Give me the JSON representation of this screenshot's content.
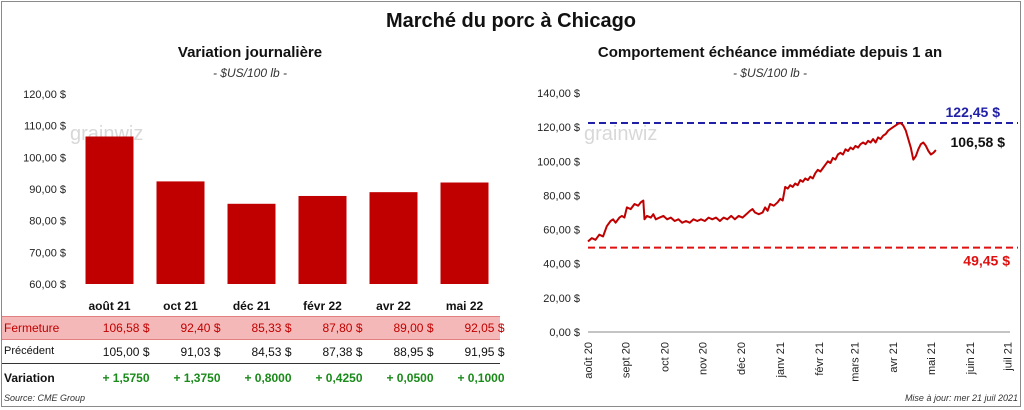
{
  "title": "Marché du porc à Chicago",
  "left_chart": {
    "title": "Variation journalière",
    "subtitle": "- $US/100 lb -"
  },
  "right_chart": {
    "title": "Comportement échéance immédiate depuis 1 an",
    "subtitle": "- $US/100 lb -",
    "annot_high": "122,45 $",
    "annot_last": "106,58 $",
    "annot_low": "49,45 $"
  },
  "watermark": "grainwiz",
  "table": {
    "close_label": "Fermeture",
    "close": [
      "106,58  $",
      "92,40  $",
      "85,33  $",
      "87,80  $",
      "89,00  $",
      "92,05  $"
    ],
    "prev_label": "Précédent",
    "prev": [
      "105,00  $",
      "91,03  $",
      "84,53  $",
      "87,38  $",
      "88,95  $",
      "91,95  $"
    ],
    "var_label": "Variation",
    "var": [
      "+ 1,5750",
      "+ 1,3750",
      "+ 0,8000",
      "+ 0,4250",
      "+ 0,0500",
      "+ 0,1000"
    ]
  },
  "source": "Source: CME Group",
  "update": "Mise à jour: mer 21 juil 2021",
  "colors": {
    "bar": "#c00000",
    "line": "#c00000",
    "high": "#1f1fa8",
    "low": "#e01010"
  },
  "chart_data": [
    {
      "type": "bar",
      "categories": [
        "août 21",
        "oct 21",
        "déc 21",
        "févr 22",
        "avr 22",
        "mai 22"
      ],
      "values": [
        106.58,
        92.4,
        85.33,
        87.8,
        89.0,
        92.05
      ],
      "ylim": [
        60,
        120
      ],
      "yticks": [
        "60,00 $",
        "70,00 $",
        "80,00 $",
        "90,00 $",
        "100,00 $",
        "110,00 $",
        "120,00 $"
      ]
    },
    {
      "type": "line",
      "x": [
        "août 20",
        "sept 20",
        "oct 20",
        "nov 20",
        "déc 20",
        "janv 21",
        "févr 21",
        "mars 21",
        "avr 21",
        "mai 21",
        "juin 21",
        "juil 21"
      ],
      "series": [
        {
          "values": [
            [
              0,
              53
            ],
            [
              3,
              55
            ],
            [
              6,
              54
            ],
            [
              9,
              57
            ],
            [
              12,
              56
            ],
            [
              15,
              62
            ],
            [
              18,
              65
            ],
            [
              20,
              66
            ],
            [
              22,
              64
            ],
            [
              25,
              67
            ],
            [
              27,
              68
            ],
            [
              29,
              67
            ],
            [
              31,
              73
            ],
            [
              34,
              72
            ],
            [
              37,
              75
            ],
            [
              40,
              74
            ],
            [
              42,
              76
            ],
            [
              44,
              77
            ],
            [
              45,
              66
            ],
            [
              47,
              68
            ],
            [
              50,
              67
            ],
            [
              52,
              69
            ],
            [
              54,
              66
            ],
            [
              57,
              67
            ],
            [
              60,
              68
            ],
            [
              63,
              66
            ],
            [
              66,
              67
            ],
            [
              69,
              65
            ],
            [
              72,
              66
            ],
            [
              75,
              64
            ],
            [
              78,
              65
            ],
            [
              81,
              64
            ],
            [
              84,
              66
            ],
            [
              87,
              65
            ],
            [
              90,
              66
            ],
            [
              93,
              65
            ],
            [
              96,
              67
            ],
            [
              99,
              66
            ],
            [
              102,
              67
            ],
            [
              105,
              65
            ],
            [
              108,
              67
            ],
            [
              111,
              66
            ],
            [
              114,
              68
            ],
            [
              117,
              66
            ],
            [
              120,
              68
            ],
            [
              123,
              67
            ],
            [
              126,
              69
            ],
            [
              129,
              71
            ],
            [
              131,
              72
            ],
            [
              133,
              70
            ],
            [
              136,
              69
            ],
            [
              139,
              70
            ],
            [
              141,
              73
            ],
            [
              143,
              71
            ],
            [
              145,
              75
            ],
            [
              148,
              74
            ],
            [
              151,
              76
            ],
            [
              153,
              78
            ],
            [
              155,
              77
            ],
            [
              157,
              85
            ],
            [
              159,
              84
            ],
            [
              161,
              86
            ],
            [
              163,
              85
            ],
            [
              165,
              87
            ],
            [
              167,
              86
            ],
            [
              169,
              89
            ],
            [
              171,
              88
            ],
            [
              173,
              90
            ],
            [
              175,
              89
            ],
            [
              177,
              91
            ],
            [
              179,
              90
            ],
            [
              181,
              93
            ],
            [
              183,
              95
            ],
            [
              185,
              94
            ],
            [
              187,
              96
            ],
            [
              189,
              98
            ],
            [
              191,
              100
            ],
            [
              193,
              99
            ],
            [
              195,
              102
            ],
            [
              197,
              101
            ],
            [
              199,
              104
            ],
            [
              201,
              105
            ],
            [
              203,
              104
            ],
            [
              205,
              107
            ],
            [
              207,
              106
            ],
            [
              209,
              108
            ],
            [
              211,
              107
            ],
            [
              213,
              109
            ],
            [
              215,
              108
            ],
            [
              217,
              110
            ],
            [
              219,
              111
            ],
            [
              221,
              110
            ],
            [
              223,
              112
            ],
            [
              225,
              111
            ],
            [
              227,
              113
            ],
            [
              229,
              111
            ],
            [
              231,
              114
            ],
            [
              233,
              113
            ],
            [
              235,
              115
            ],
            [
              237,
              116
            ],
            [
              239,
              118
            ],
            [
              241,
              119
            ],
            [
              243,
              120
            ],
            [
              245,
              121
            ],
            [
              247,
              122
            ],
            [
              249,
              122.45
            ],
            [
              251,
              121
            ],
            [
              253,
              118
            ],
            [
              255,
              113
            ],
            [
              257,
              108
            ],
            [
              259,
              101
            ],
            [
              261,
              103
            ],
            [
              263,
              107
            ],
            [
              265,
              110
            ],
            [
              267,
              111
            ],
            [
              269,
              109
            ],
            [
              271,
              106
            ],
            [
              273,
              104
            ],
            [
              275,
              105
            ],
            [
              277,
              106.58
            ]
          ]
        }
      ],
      "x_domain": [
        0,
        336
      ],
      "x_ticks_at": [
        0,
        30,
        61,
        91,
        122,
        153,
        184,
        212,
        243,
        273,
        304,
        334
      ],
      "ylim": [
        0,
        140
      ],
      "yticks": [
        "0,00 $",
        "20,00 $",
        "40,00 $",
        "60,00 $",
        "80,00 $",
        "100,00 $",
        "120,00 $",
        "140,00 $"
      ],
      "hlines": [
        122.45,
        49.45
      ]
    }
  ]
}
